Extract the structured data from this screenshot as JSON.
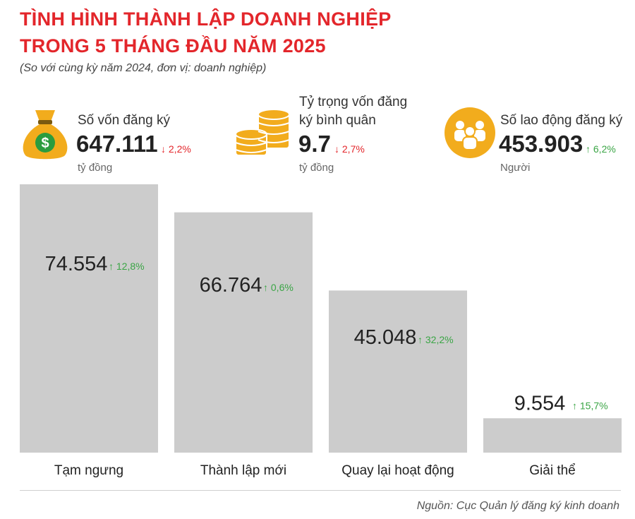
{
  "title_line1": "TÌNH HÌNH THÀNH LẬP DOANH NGHIỆP",
  "title_line2": "TRONG 5 THÁNG ĐẦU NĂM 2025",
  "subtitle": "(So với cùng kỳ năm 2024, đơn vị: doanh nghiệp)",
  "kpis": [
    {
      "label": "Số vốn đăng ký",
      "value": "647.111",
      "change": "↓ 2,2%",
      "direction": "down",
      "unit": "tỷ đồng",
      "icon": "money-bag-icon"
    },
    {
      "label_line1": "Tỷ trọng vốn đăng",
      "label_line2": "ký bình quân",
      "value": "9.7",
      "change": "↓ 2,7%",
      "direction": "down",
      "unit": "tỷ đồng",
      "icon": "coins-icon"
    },
    {
      "label": "Số lao động đăng ký",
      "value": "453.903",
      "change": "↑ 6,2%",
      "direction": "up",
      "unit": "Người",
      "icon": "people-icon"
    }
  ],
  "colors": {
    "title": "#e3262b",
    "bar": "#cccccc",
    "up": "#3aa545",
    "down": "#e3262b",
    "icon": "#f2ac1d"
  },
  "chart_data": {
    "type": "bar",
    "categories": [
      "Tạm ngưng",
      "Thành lập mới",
      "Quay lại hoạt động",
      "Giải thể"
    ],
    "values": [
      74554,
      66764,
      45048,
      9554
    ],
    "value_labels": [
      "74.554",
      "66.764",
      "45.048",
      "9.554"
    ],
    "changes": [
      "↑ 12,8%",
      "↑ 0,6%",
      "↑ 32,2%",
      "↑ 15,7%"
    ],
    "ylim": [
      0,
      74554
    ]
  },
  "source": "Nguồn: Cục Quản lý đăng ký kinh doanh"
}
